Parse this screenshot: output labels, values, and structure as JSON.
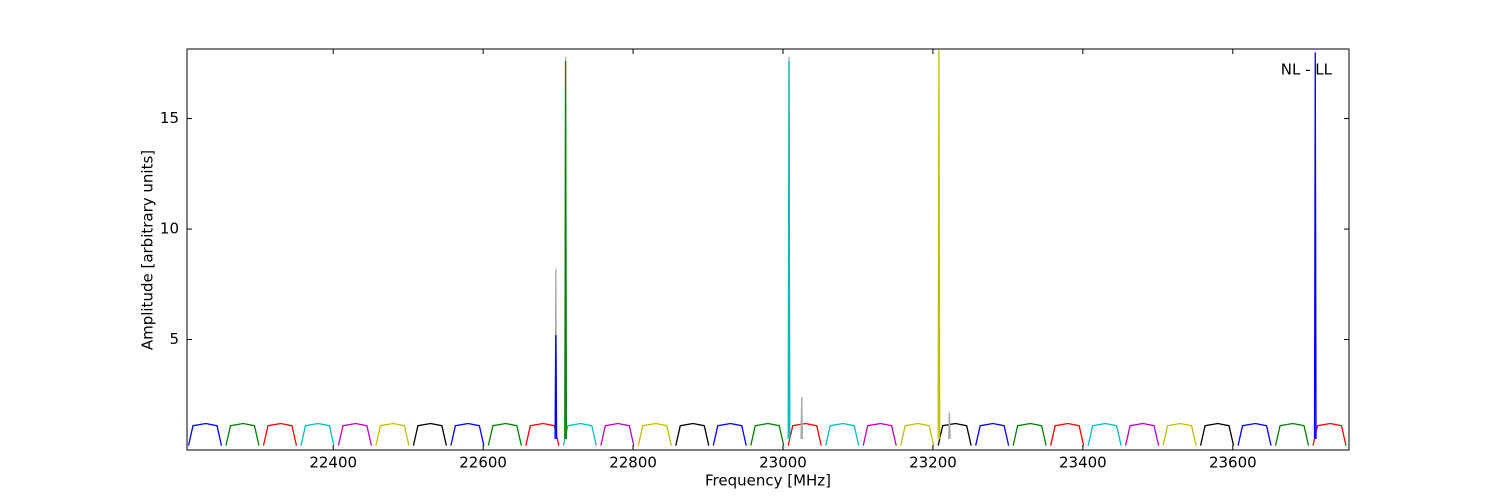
{
  "chart_data": {
    "type": "line",
    "xlabel": "Frequency [MHz]",
    "ylabel": "Amplitude [arbitrary units]",
    "annotation": "NL - LL",
    "xlim": [
      22205,
      23755
    ],
    "ylim": [
      0,
      18.15
    ],
    "xticks": [
      22400,
      22600,
      22800,
      23000,
      23200,
      23400,
      23600
    ],
    "yticks": [
      5,
      10,
      15
    ],
    "grid": false,
    "series": [
      {
        "color": "#0000ff",
        "x": [
          22207,
          22213,
          22230,
          22245,
          22251,
          null,
          22557,
          22563,
          22580,
          22595,
          22601,
          null,
          22907,
          22913,
          22930,
          22945,
          22951,
          null,
          23257,
          23263,
          23280,
          23295,
          23301,
          null,
          23607,
          23613,
          23630,
          23645,
          23651
        ],
        "values": [
          0.2,
          1.1,
          1.2,
          1.1,
          0.2,
          null,
          0.2,
          1.1,
          1.2,
          1.1,
          0.2,
          null,
          0.2,
          1.1,
          1.2,
          1.1,
          0.2,
          null,
          0.2,
          1.1,
          1.2,
          1.1,
          0.2,
          null,
          0.2,
          1.1,
          1.2,
          1.1,
          0.2
        ]
      },
      {
        "color": "#008000",
        "x": [
          22257,
          22263,
          22280,
          22295,
          22301,
          null,
          22607,
          22613,
          22630,
          22645,
          22651,
          null,
          22957,
          22963,
          22980,
          22995,
          23001,
          null,
          23307,
          23313,
          23330,
          23345,
          23351,
          null,
          23657,
          23663,
          23680,
          23695,
          23701
        ],
        "values": [
          0.2,
          1.1,
          1.2,
          1.1,
          0.2,
          null,
          0.2,
          1.1,
          1.2,
          1.1,
          0.2,
          null,
          0.2,
          1.1,
          1.2,
          1.1,
          0.2,
          null,
          0.2,
          1.1,
          1.2,
          1.1,
          0.2,
          null,
          0.2,
          1.1,
          1.2,
          1.1,
          0.2
        ]
      },
      {
        "color": "#ff0000",
        "x": [
          22307,
          22313,
          22330,
          22345,
          22351,
          null,
          22657,
          22663,
          22680,
          22695,
          22701,
          null,
          23007,
          23013,
          23030,
          23045,
          23051,
          null,
          23357,
          23363,
          23380,
          23395,
          23401,
          null,
          23707,
          23713,
          23730,
          23745,
          23751
        ],
        "values": [
          0.2,
          1.1,
          1.2,
          1.1,
          0.2,
          null,
          0.2,
          1.1,
          1.2,
          1.1,
          0.2,
          null,
          0.2,
          1.1,
          1.2,
          1.1,
          0.2,
          null,
          0.2,
          1.1,
          1.2,
          1.1,
          0.2,
          null,
          0.2,
          1.1,
          1.2,
          1.1,
          0.2
        ]
      },
      {
        "color": "#00bfbf",
        "x": [
          22357,
          22363,
          22380,
          22395,
          22401,
          null,
          22707,
          22713,
          22730,
          22745,
          22751,
          null,
          23057,
          23063,
          23080,
          23095,
          23101,
          null,
          23407,
          23413,
          23430,
          23445,
          23451
        ],
        "values": [
          0.2,
          1.1,
          1.2,
          1.1,
          0.2,
          null,
          0.2,
          1.1,
          1.2,
          1.1,
          0.2,
          null,
          0.2,
          1.1,
          1.2,
          1.1,
          0.2,
          null,
          0.2,
          1.1,
          1.2,
          1.1,
          0.2
        ]
      },
      {
        "color": "#bf00bf",
        "x": [
          22407,
          22413,
          22430,
          22445,
          22451,
          null,
          22757,
          22763,
          22780,
          22795,
          22801,
          null,
          23107,
          23113,
          23130,
          23145,
          23151,
          null,
          23457,
          23463,
          23480,
          23495,
          23501
        ],
        "values": [
          0.2,
          1.1,
          1.2,
          1.1,
          0.2,
          null,
          0.2,
          1.1,
          1.2,
          1.1,
          0.2,
          null,
          0.2,
          1.1,
          1.2,
          1.1,
          0.2,
          null,
          0.2,
          1.1,
          1.2,
          1.1,
          0.2
        ]
      },
      {
        "color": "#bfbf00",
        "x": [
          22457,
          22463,
          22480,
          22495,
          22501,
          null,
          22807,
          22813,
          22830,
          22845,
          22851,
          null,
          23157,
          23163,
          23180,
          23195,
          23201,
          null,
          23507,
          23513,
          23530,
          23545,
          23551
        ],
        "values": [
          0.2,
          1.1,
          1.2,
          1.1,
          0.2,
          null,
          0.2,
          1.1,
          1.2,
          1.1,
          0.2,
          null,
          0.2,
          1.1,
          1.2,
          1.1,
          0.2,
          null,
          0.2,
          1.1,
          1.2,
          1.1,
          0.2
        ]
      },
      {
        "color": "#000000",
        "x": [
          22507,
          22513,
          22530,
          22545,
          22551,
          null,
          22857,
          22863,
          22880,
          22895,
          22901,
          null,
          23207,
          23213,
          23230,
          23245,
          23251,
          null,
          23557,
          23563,
          23580,
          23595,
          23601
        ],
        "values": [
          0.2,
          1.1,
          1.2,
          1.1,
          0.2,
          null,
          0.2,
          1.1,
          1.2,
          1.1,
          0.2,
          null,
          0.2,
          1.1,
          1.2,
          1.1,
          0.2,
          null,
          0.2,
          1.1,
          1.2,
          1.1,
          0.2
        ]
      },
      {
        "color": "#aaaaaa",
        "x": [
          22696,
          22697,
          22698,
          null,
          22709,
          22710,
          22711,
          null,
          23007,
          23008,
          23009,
          null,
          23024,
          23025,
          23026,
          null,
          23221,
          23222,
          23223
        ],
        "values": [
          0.5,
          8.2,
          0.5,
          null,
          0.5,
          17.8,
          0.5,
          null,
          0.5,
          17.8,
          0.5,
          null,
          0.5,
          2.4,
          0.5,
          null,
          0.5,
          1.7,
          0.5
        ]
      },
      {
        "color": "#0000ff",
        "x": [
          22696,
          22697,
          22698,
          null,
          23709,
          23710,
          23711
        ],
        "values": [
          0.5,
          5.2,
          0.5,
          null,
          0.5,
          18.0,
          0.5
        ]
      },
      {
        "color": "#008000",
        "x": [
          22709,
          22710,
          22711
        ],
        "values": [
          0.5,
          17.6,
          0.5
        ]
      },
      {
        "color": "#00bfbf",
        "x": [
          23007,
          23008,
          23009
        ],
        "values": [
          0.5,
          17.6,
          0.5
        ]
      },
      {
        "color": "#bfbf00",
        "x": [
          23207,
          23208,
          23209
        ],
        "values": [
          0.5,
          18.1,
          0.5
        ]
      }
    ]
  }
}
